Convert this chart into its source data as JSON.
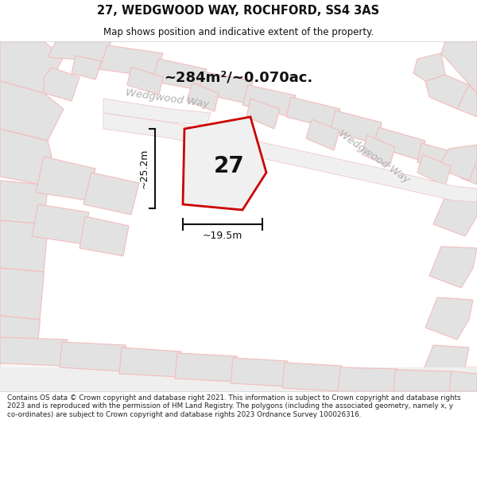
{
  "title": "27, WEDGWOOD WAY, ROCHFORD, SS4 3AS",
  "subtitle": "Map shows position and indicative extent of the property.",
  "area_text": "~284m²/~0.070ac.",
  "width_label": "~19.5m",
  "height_label": "~25.2m",
  "house_number": "27",
  "street_label1": "Wedgwood Way",
  "street_label2": "Wedgwood Way",
  "footer": "Contains OS data © Crown copyright and database right 2021. This information is subject to Crown copyright and database rights 2023 and is reproduced with the permission of HM Land Registry. The polygons (including the associated geometry, namely x, y co-ordinates) are subject to Crown copyright and database rights 2023 Ordnance Survey 100026316.",
  "bg_color": "#efefef",
  "highlight_color": "#cc0000",
  "road_label_color": "#b0b0b0",
  "footer_color": "#222222",
  "title_color": "#111111",
  "poly_fill": "#e2e2e2",
  "poly_edge": "#f5bcbc",
  "white_fill": "#f8f8f8"
}
